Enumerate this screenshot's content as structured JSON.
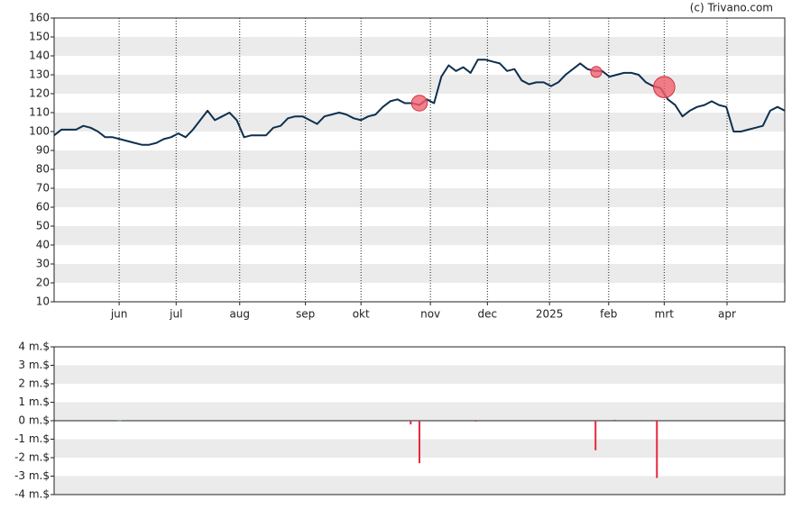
{
  "credit": "(c) Trivano.com",
  "chart_data": [
    {
      "type": "line",
      "x": [
        0,
        1,
        2,
        3,
        4,
        5,
        6,
        7,
        8,
        9,
        10,
        11,
        12,
        13,
        14,
        15,
        16,
        17,
        18,
        19,
        20,
        21,
        22,
        23,
        24,
        25,
        26,
        27,
        28,
        29,
        30,
        31,
        32,
        33,
        34,
        35,
        36,
        37,
        38,
        39,
        40,
        41,
        42,
        43,
        44,
        45,
        46,
        47,
        48,
        49,
        50,
        51,
        52,
        53,
        54,
        55,
        56,
        57,
        58,
        59,
        60,
        61,
        62,
        63,
        64,
        65,
        66,
        67,
        68,
        69,
        70,
        71,
        72,
        73,
        74,
        75,
        76,
        77,
        78,
        79,
        80,
        81,
        82,
        83,
        84,
        85,
        86,
        87,
        88,
        89,
        90,
        91,
        92,
        93,
        94,
        95,
        96,
        97,
        98,
        99,
        100
      ],
      "values": [
        98,
        101,
        101,
        101,
        103,
        102,
        100,
        97,
        97,
        96,
        95,
        94,
        93,
        93,
        94,
        96,
        97,
        99,
        97,
        101,
        106,
        111,
        106,
        108,
        110,
        106,
        97,
        98,
        98,
        98,
        102,
        103,
        107,
        108,
        108,
        106,
        104,
        108,
        109,
        110,
        109,
        107,
        106,
        108,
        109,
        113,
        116,
        117,
        115,
        115,
        114,
        117,
        115,
        129,
        135,
        132,
        134,
        131,
        138,
        138,
        137,
        136,
        132,
        133,
        127,
        125,
        126,
        126,
        124,
        126,
        130,
        133,
        136,
        133,
        132,
        132,
        129,
        130,
        131,
        131,
        130,
        126,
        124,
        123,
        117,
        114,
        108,
        111,
        113,
        114,
        116,
        114,
        113,
        100,
        100,
        101,
        102,
        103,
        111,
        113,
        111
      ],
      "color": "#0e2f4f",
      "markers": {
        "x": [
          50,
          74.2,
          83.5
        ],
        "y": [
          115,
          131.5,
          123.5
        ],
        "size": [
          2.3,
          1.6,
          3.1
        ],
        "color": "#f0606e"
      },
      "xlim": [
        0,
        100
      ],
      "xticks": [
        {
          "value": 8.9,
          "label": "jun"
        },
        {
          "value": 16.7,
          "label": "jul"
        },
        {
          "value": 25.4,
          "label": "aug"
        },
        {
          "value": 34.4,
          "label": "sep"
        },
        {
          "value": 42.0,
          "label": "okt"
        },
        {
          "value": 51.5,
          "label": "nov"
        },
        {
          "value": 59.3,
          "label": "dec"
        },
        {
          "value": 67.8,
          "label": "2025"
        },
        {
          "value": 75.9,
          "label": "feb"
        },
        {
          "value": 83.5,
          "label": "mrt"
        },
        {
          "value": 92.1,
          "label": "apr"
        }
      ],
      "ylim": [
        10,
        160
      ],
      "yticks": [
        10,
        20,
        30,
        40,
        50,
        60,
        70,
        80,
        90,
        100,
        110,
        120,
        130,
        140,
        150,
        160
      ]
    },
    {
      "type": "bar",
      "x": [
        8.8,
        9.1,
        48.8,
        50,
        57.7,
        74.1,
        76.7,
        82.5
      ],
      "values": [
        0.02,
        0.02,
        -0.2,
        -2.3,
        -0.05,
        -1.6,
        0.05,
        -3.1
      ],
      "up_color": "#2a8a3a",
      "down_color": "#e8283c",
      "xlim": [
        0,
        100
      ],
      "ylim": [
        -4,
        4
      ],
      "yticks": [
        {
          "value": -4,
          "label": "-4 m.$"
        },
        {
          "value": -3,
          "label": "-3 m.$"
        },
        {
          "value": -2,
          "label": "-2 m.$"
        },
        {
          "value": -1,
          "label": "-1 m.$"
        },
        {
          "value": 0,
          "label": "0 m.$"
        },
        {
          "value": 1,
          "label": "1 m.$"
        },
        {
          "value": 2,
          "label": "2 m.$"
        },
        {
          "value": 3,
          "label": "3 m.$"
        },
        {
          "value": 4,
          "label": "4 m.$"
        }
      ]
    }
  ]
}
